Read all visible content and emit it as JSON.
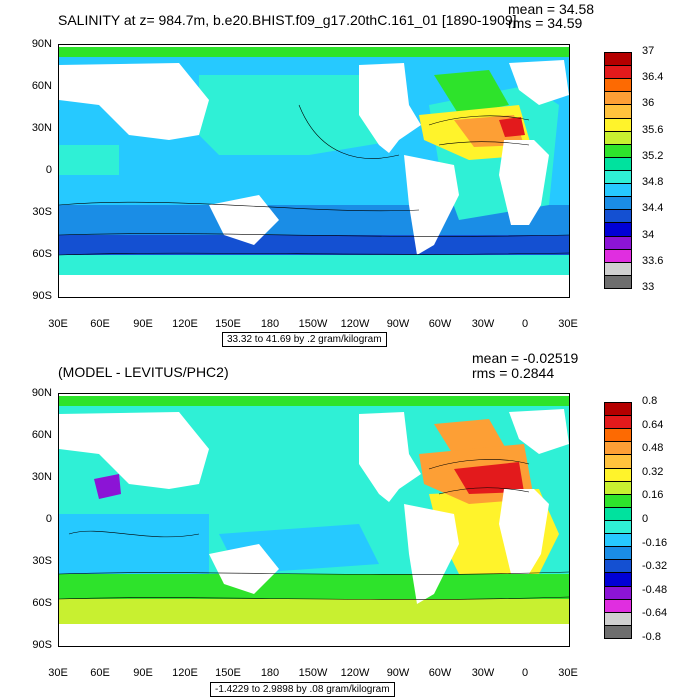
{
  "top_panel": {
    "title": "SALINITY at z= 984.7m, b.e20.BHIST.f09_g17.20thC.161_01 [1890-1909]",
    "mean_text": "mean = 34.58",
    "rms_text": "rms = 34.59",
    "subtitle": "33.32 to 41.69 by .2 gram/kilogram",
    "y_ticks": [
      "90N",
      "60N",
      "30N",
      "0",
      "30S",
      "60S",
      "90S"
    ],
    "x_ticks": [
      "30E",
      "60E",
      "90E",
      "120E",
      "150E",
      "180",
      "150W",
      "120W",
      "90W",
      "60W",
      "30W",
      "0",
      "30E"
    ],
    "colorbar_labels": [
      "37",
      "36.4",
      "36",
      "35.6",
      "35.2",
      "34.8",
      "34.4",
      "34",
      "33.6",
      "33"
    ],
    "colorbar_colors": [
      "#b40000",
      "#e31a1c",
      "#fd6a02",
      "#fd9f35",
      "#ffc23d",
      "#fff32b",
      "#c8f030",
      "#2ee32b",
      "#00e29e",
      "#2ff0d6",
      "#26c9ff",
      "#1a8de6",
      "#1450d2",
      "#0000d6",
      "#8c14d6",
      "#e02ee0",
      "#d0d0d0",
      "#6e6e6e"
    ]
  },
  "bottom_panel": {
    "title": "(MODEL - LEVITUS/PHC2)",
    "mean_text": "mean = -0.02519",
    "rms_text": "rms = 0.2844",
    "subtitle": "-1.4229 to 2.9898 by .08 gram/kilogram",
    "y_ticks": [
      "90N",
      "60N",
      "30N",
      "0",
      "30S",
      "60S",
      "90S"
    ],
    "x_ticks": [
      "30E",
      "60E",
      "90E",
      "120E",
      "150E",
      "180",
      "150W",
      "120W",
      "90W",
      "60W",
      "30W",
      "0",
      "30E"
    ],
    "colorbar_labels": [
      "0.8",
      "0.64",
      "0.48",
      "0.32",
      "0.16",
      "0",
      "-0.16",
      "-0.32",
      "-0.48",
      "-0.64",
      "-0.8"
    ],
    "colorbar_colors": [
      "#b40000",
      "#e31a1c",
      "#fd6a02",
      "#fd9f35",
      "#ffc23d",
      "#fff32b",
      "#c8f030",
      "#2ee32b",
      "#00e29e",
      "#2ff0d6",
      "#26c9ff",
      "#1a8de6",
      "#1450d2",
      "#0000d6",
      "#8c14d6",
      "#e02ee0",
      "#d0d0d0",
      "#6e6e6e"
    ]
  },
  "map_colors": {
    "land": "#ffffff",
    "top_pacific": "#26c9ff",
    "top_southern": "#1a8de6",
    "top_south_deep": "#1450d2",
    "top_north_pac": "#2ff0d6",
    "top_atl_tropic": "#2ff0d6",
    "top_atl_subtrop": "#fff32b",
    "top_atl_core": "#fd9f35",
    "top_atl_hot": "#e31a1c",
    "top_arctic": "#2ee32b",
    "top_labrador": "#2ee32b",
    "bot_pacific": "#2ff0d6",
    "bot_indian": "#26c9ff",
    "bot_southern": "#2ee32b",
    "bot_south_band": "#c8f030",
    "bot_atl_n": "#fd9f35",
    "bot_atl_core": "#e31a1c",
    "bot_atl_eq": "#fff32b",
    "bot_arctic": "#2ee32b",
    "bot_arabian": "#8c14d6",
    "bot_labrador": "#fd9f35"
  }
}
